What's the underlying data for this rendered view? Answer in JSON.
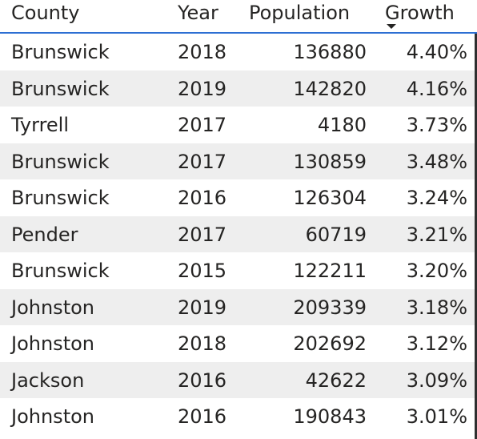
{
  "table": {
    "columns": [
      "County",
      "Year",
      "Population",
      "Growth"
    ],
    "sort": {
      "column": "Growth",
      "direction": "descending",
      "icon": "sort-descending-icon"
    },
    "rows": [
      {
        "county": "Brunswick",
        "year": "2018",
        "population": "136880",
        "growth": "4.40%"
      },
      {
        "county": "Brunswick",
        "year": "2019",
        "population": "142820",
        "growth": "4.16%"
      },
      {
        "county": "Tyrrell",
        "year": "2017",
        "population": "4180",
        "growth": "3.73%"
      },
      {
        "county": "Brunswick",
        "year": "2017",
        "population": "130859",
        "growth": "3.48%"
      },
      {
        "county": "Brunswick",
        "year": "2016",
        "population": "126304",
        "growth": "3.24%"
      },
      {
        "county": "Pender",
        "year": "2017",
        "population": "60719",
        "growth": "3.21%"
      },
      {
        "county": "Brunswick",
        "year": "2015",
        "population": "122211",
        "growth": "3.20%"
      },
      {
        "county": "Johnston",
        "year": "2019",
        "population": "209339",
        "growth": "3.18%"
      },
      {
        "county": "Johnston",
        "year": "2018",
        "population": "202692",
        "growth": "3.12%"
      },
      {
        "county": "Jackson",
        "year": "2016",
        "population": "42622",
        "growth": "3.09%"
      },
      {
        "county": "Johnston",
        "year": "2016",
        "population": "190843",
        "growth": "3.01%"
      }
    ]
  },
  "colors": {
    "header_border": "#2d6fd3",
    "row_stripe": "#eeeeee",
    "text": "#252423"
  }
}
